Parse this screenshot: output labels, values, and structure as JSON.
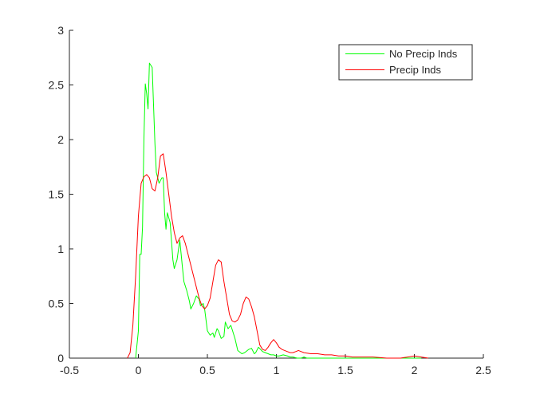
{
  "chart_data": {
    "type": "line",
    "title": "",
    "xlabel": "",
    "ylabel": "",
    "xlim": [
      -0.5,
      2.5
    ],
    "ylim": [
      0,
      3
    ],
    "xticks": [
      "-0.5",
      "0",
      "0.5",
      "1",
      "1.5",
      "2",
      "2.5"
    ],
    "yticks": [
      "0",
      "0.5",
      "1",
      "1.5",
      "2",
      "2.5",
      "3"
    ],
    "grid": false,
    "legend_position": "top-right",
    "series": [
      {
        "name": "No Precip Inds",
        "color": "#00ff00",
        "x": [
          -0.02,
          0.0,
          0.01,
          0.02,
          0.03,
          0.04,
          0.05,
          0.06,
          0.07,
          0.08,
          0.1,
          0.12,
          0.13,
          0.15,
          0.17,
          0.18,
          0.19,
          0.2,
          0.21,
          0.23,
          0.25,
          0.26,
          0.28,
          0.3,
          0.32,
          0.33,
          0.35,
          0.37,
          0.38,
          0.4,
          0.42,
          0.44,
          0.45,
          0.47,
          0.48,
          0.5,
          0.52,
          0.54,
          0.55,
          0.57,
          0.58,
          0.6,
          0.62,
          0.63,
          0.65,
          0.67,
          0.7,
          0.72,
          0.74,
          0.75,
          0.77,
          0.78,
          0.8,
          0.82,
          0.84,
          0.85,
          0.87,
          0.9,
          0.92,
          0.94,
          0.96,
          0.98,
          1.0,
          1.02,
          1.05,
          1.08,
          1.1,
          1.12,
          1.15,
          1.18,
          1.2,
          1.22,
          1.25,
          1.28,
          1.3,
          1.35,
          1.4,
          1.45,
          1.5,
          1.55,
          1.6,
          1.65,
          1.7,
          1.75,
          1.8,
          1.9,
          2.0,
          2.05
        ],
        "values": [
          0.0,
          0.25,
          0.95,
          0.95,
          1.2,
          2.0,
          2.51,
          2.42,
          2.28,
          2.7,
          2.66,
          1.96,
          1.7,
          1.6,
          1.65,
          1.65,
          1.33,
          1.18,
          1.33,
          1.24,
          0.9,
          0.82,
          0.9,
          1.08,
          0.82,
          0.7,
          0.62,
          0.52,
          0.45,
          0.5,
          0.57,
          0.54,
          0.48,
          0.5,
          0.45,
          0.25,
          0.21,
          0.23,
          0.19,
          0.27,
          0.25,
          0.18,
          0.2,
          0.33,
          0.27,
          0.3,
          0.18,
          0.07,
          0.05,
          0.04,
          0.05,
          0.06,
          0.08,
          0.09,
          0.04,
          0.05,
          0.1,
          0.06,
          0.05,
          0.04,
          0.03,
          0.03,
          0.02,
          0.02,
          0.03,
          0.02,
          0.01,
          0.01,
          0.0,
          0.0,
          0.01,
          0.0,
          0.0,
          0.0,
          0.0,
          0.0,
          0.0,
          0.0,
          0.0,
          0.0,
          0.0,
          0.0,
          0.0,
          0.0,
          0.0,
          0.0,
          0.0,
          0.0
        ]
      },
      {
        "name": "Precip Inds",
        "color": "#ff0000",
        "x": [
          -0.08,
          -0.06,
          -0.04,
          -0.02,
          0.0,
          0.02,
          0.04,
          0.06,
          0.08,
          0.1,
          0.12,
          0.14,
          0.16,
          0.18,
          0.2,
          0.22,
          0.24,
          0.26,
          0.28,
          0.3,
          0.32,
          0.34,
          0.36,
          0.38,
          0.4,
          0.42,
          0.44,
          0.46,
          0.48,
          0.5,
          0.52,
          0.54,
          0.56,
          0.58,
          0.6,
          0.62,
          0.64,
          0.66,
          0.68,
          0.7,
          0.72,
          0.74,
          0.76,
          0.78,
          0.8,
          0.82,
          0.84,
          0.86,
          0.88,
          0.9,
          0.92,
          0.94,
          0.96,
          0.98,
          1.0,
          1.02,
          1.04,
          1.06,
          1.08,
          1.1,
          1.12,
          1.14,
          1.16,
          1.18,
          1.2,
          1.25,
          1.3,
          1.35,
          1.4,
          1.45,
          1.5,
          1.55,
          1.6,
          1.7,
          1.8,
          1.9,
          2.0,
          2.05,
          2.1
        ],
        "values": [
          0.0,
          0.05,
          0.3,
          0.75,
          1.3,
          1.6,
          1.66,
          1.68,
          1.65,
          1.55,
          1.53,
          1.65,
          1.85,
          1.87,
          1.7,
          1.5,
          1.3,
          1.15,
          1.05,
          1.1,
          1.12,
          1.05,
          0.95,
          0.85,
          0.75,
          0.65,
          0.55,
          0.48,
          0.45,
          0.48,
          0.55,
          0.7,
          0.85,
          0.9,
          0.88,
          0.7,
          0.55,
          0.4,
          0.34,
          0.33,
          0.35,
          0.4,
          0.5,
          0.56,
          0.54,
          0.47,
          0.38,
          0.25,
          0.12,
          0.08,
          0.07,
          0.1,
          0.14,
          0.17,
          0.14,
          0.1,
          0.08,
          0.07,
          0.06,
          0.05,
          0.05,
          0.06,
          0.07,
          0.06,
          0.05,
          0.04,
          0.04,
          0.03,
          0.03,
          0.02,
          0.02,
          0.01,
          0.01,
          0.01,
          0.0,
          0.0,
          0.02,
          0.01,
          0.0
        ]
      }
    ]
  }
}
